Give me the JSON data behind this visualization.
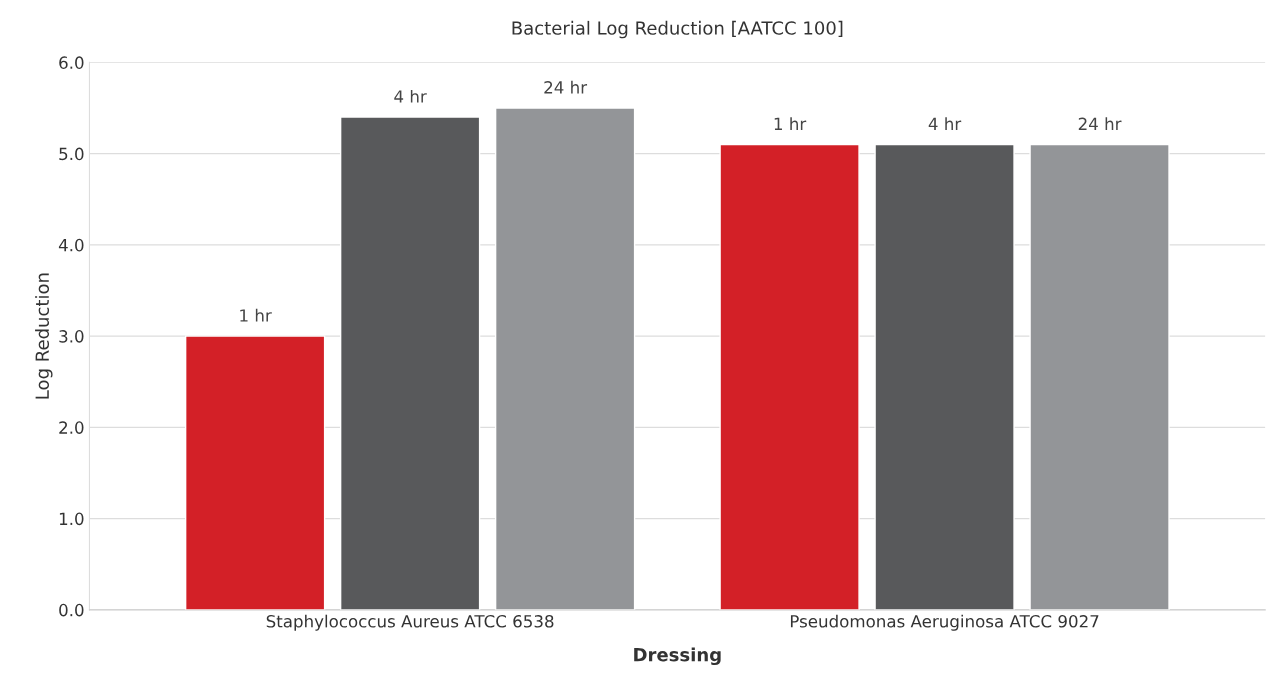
{
  "chart_data": {
    "type": "bar",
    "title": "Bacterial Log Reduction [AATCC 100]",
    "xlabel": "Dressing",
    "ylabel": "Log Reduction",
    "categories": [
      "Staphylococcus Aureus ATCC 6538",
      "Pseudomonas Aeruginosa ATCC 9027"
    ],
    "series": [
      {
        "name": "1 hr",
        "color": "#d32027",
        "values": [
          3.0,
          5.1
        ]
      },
      {
        "name": "4 hr",
        "color": "#58595b",
        "values": [
          5.4,
          5.1
        ]
      },
      {
        "name": "24 hr",
        "color": "#939598",
        "values": [
          5.5,
          5.1
        ]
      }
    ],
    "ylim": [
      0,
      6
    ],
    "yticks": [
      {
        "value": 0,
        "label": "0.0"
      },
      {
        "value": 1,
        "label": "1.0"
      },
      {
        "value": 2,
        "label": "2.0"
      },
      {
        "value": 3,
        "label": "3.0"
      },
      {
        "value": 4,
        "label": "4.0"
      },
      {
        "value": 5,
        "label": "5.0"
      },
      {
        "value": 6,
        "label": "6.0"
      }
    ],
    "grid": "y",
    "legend": false
  }
}
